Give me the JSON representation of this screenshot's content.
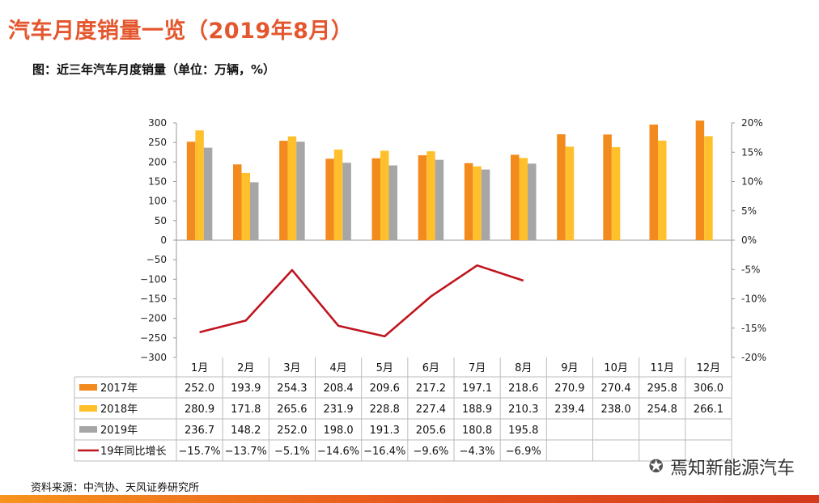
{
  "title": "汽车月度销量一览（2019年8月）",
  "subtitle": "图：近三年汽车月度销量（单位：万辆，%）",
  "source": "资料来源：中汽协、天风证券研究所",
  "watermark": {
    "icon": "wechat-icon",
    "text": "焉知新能源汽车"
  },
  "colors": {
    "s2017": "#f28a1e",
    "s2018": "#ffc02b",
    "s2019": "#a6a6a6",
    "growth": "#c0141e",
    "title": "#e4572e"
  },
  "chart_data": {
    "type": "bar",
    "categories": [
      "1月",
      "2月",
      "3月",
      "4月",
      "5月",
      "6月",
      "7月",
      "8月",
      "9月",
      "10月",
      "11月",
      "12月"
    ],
    "series": [
      {
        "name": "2017年",
        "type": "bar",
        "values": [
          252.0,
          193.9,
          254.3,
          208.4,
          209.6,
          217.2,
          197.1,
          218.6,
          270.9,
          270.4,
          295.8,
          306.0
        ]
      },
      {
        "name": "2018年",
        "type": "bar",
        "values": [
          280.9,
          171.8,
          265.6,
          231.9,
          228.8,
          227.4,
          188.9,
          210.3,
          239.4,
          238.0,
          254.8,
          266.1
        ]
      },
      {
        "name": "2019年",
        "type": "bar",
        "values": [
          236.7,
          148.2,
          252.0,
          198.0,
          191.3,
          205.6,
          180.8,
          195.8,
          null,
          null,
          null,
          null
        ]
      },
      {
        "name": "19年同比增长",
        "type": "line",
        "axis": "right",
        "values": [
          -15.7,
          -13.7,
          -5.1,
          -14.6,
          -16.4,
          -9.6,
          -4.3,
          -6.9,
          null,
          null,
          null,
          null
        ]
      }
    ],
    "y_left": {
      "ticks": [
        "300",
        "250",
        "200",
        "150",
        "100",
        "50",
        "0",
        "−50",
        "−100",
        "−150",
        "−200",
        "−250",
        "−300"
      ],
      "ylim": [
        -300,
        300
      ]
    },
    "y_right": {
      "ticks": [
        "20%",
        "15%",
        "10%",
        "5%",
        "0%",
        "-5%",
        "-10%",
        "-15%",
        "-20%"
      ],
      "ylim": [
        -20,
        20
      ]
    },
    "table": {
      "rows": [
        {
          "label": "2017年",
          "cells": [
            "252.0",
            "193.9",
            "254.3",
            "208.4",
            "209.6",
            "217.2",
            "197.1",
            "218.6",
            "270.9",
            "270.4",
            "295.8",
            "306.0"
          ]
        },
        {
          "label": "2018年",
          "cells": [
            "280.9",
            "171.8",
            "265.6",
            "231.9",
            "228.8",
            "227.4",
            "188.9",
            "210.3",
            "239.4",
            "238.0",
            "254.8",
            "266.1"
          ]
        },
        {
          "label": "2019年",
          "cells": [
            "236.7",
            "148.2",
            "252.0",
            "198.0",
            "191.3",
            "205.6",
            "180.8",
            "195.8",
            "",
            "",
            "",
            ""
          ]
        },
        {
          "label": "19年同比增长",
          "cells": [
            "−15.7%",
            "−13.7%",
            "−5.1%",
            "−14.6%",
            "−16.4%",
            "−9.6%",
            "−4.3%",
            "−6.9%",
            "",
            "",
            "",
            ""
          ]
        }
      ]
    },
    "grid": false
  }
}
